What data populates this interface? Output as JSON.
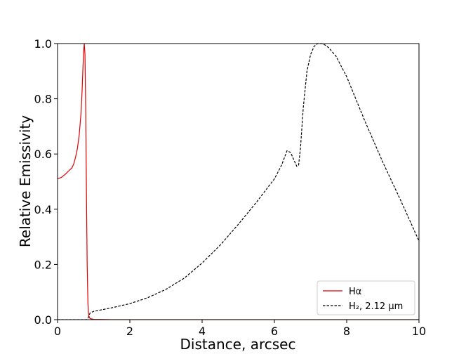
{
  "chart_data": {
    "type": "line",
    "xlabel": "Distance, arcsec",
    "ylabel": "Relative Emissivity",
    "xlim": [
      0,
      10
    ],
    "ylim": [
      0,
      1.0
    ],
    "x_ticks": [
      "0",
      "2",
      "4",
      "6",
      "8",
      "10"
    ],
    "y_ticks": [
      "0.0",
      "0.2",
      "0.4",
      "0.6",
      "0.8",
      "1.0"
    ],
    "grid": false,
    "legend_position": "lower right",
    "series": [
      {
        "name": "Hα",
        "color": "#dd0000",
        "style": "solid",
        "x": [
          0,
          0.1,
          0.2,
          0.3,
          0.4,
          0.45,
          0.5,
          0.55,
          0.6,
          0.65,
          0.68,
          0.7,
          0.72,
          0.74,
          0.76,
          0.78,
          0.8,
          0.82,
          0.84,
          0.86,
          0.9,
          1.0,
          1.5,
          2.0,
          3.0,
          4.0,
          6.0,
          8.0,
          10.0
        ],
        "y": [
          0.51,
          0.515,
          0.525,
          0.538,
          0.55,
          0.565,
          0.59,
          0.62,
          0.67,
          0.75,
          0.83,
          0.9,
          0.97,
          1.0,
          0.96,
          0.75,
          0.45,
          0.2,
          0.06,
          0.015,
          0.004,
          0.001,
          0.0,
          0.0,
          0.0,
          0.0,
          0.0,
          0.0,
          0.0
        ]
      },
      {
        "name": "H₂, 2.12 μm",
        "color": "#000000",
        "style": "dashed",
        "x": [
          0,
          0.8,
          0.84,
          0.87,
          0.9,
          0.95,
          1.0,
          1.5,
          2.0,
          2.5,
          3.0,
          3.5,
          4.0,
          4.5,
          5.0,
          5.5,
          6.0,
          6.2,
          6.35,
          6.45,
          6.55,
          6.62,
          6.67,
          6.72,
          6.8,
          6.9,
          7.0,
          7.1,
          7.2,
          7.3,
          7.4,
          7.5,
          7.7,
          8.0,
          8.5,
          9.0,
          9.5,
          10.0
        ],
        "y": [
          0.0,
          0.0,
          0.005,
          0.015,
          0.024,
          0.027,
          0.03,
          0.043,
          0.058,
          0.08,
          0.11,
          0.15,
          0.205,
          0.27,
          0.345,
          0.425,
          0.51,
          0.56,
          0.612,
          0.605,
          0.575,
          0.555,
          0.56,
          0.62,
          0.77,
          0.9,
          0.96,
          0.99,
          1.0,
          1.0,
          0.995,
          0.985,
          0.955,
          0.88,
          0.72,
          0.57,
          0.43,
          0.285
        ]
      }
    ]
  }
}
